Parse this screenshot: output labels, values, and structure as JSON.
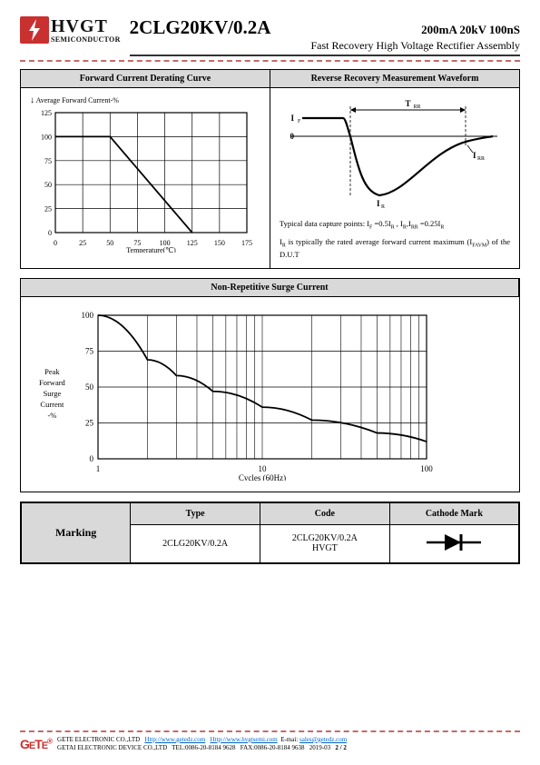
{
  "header": {
    "logo_main": "HVGT",
    "logo_sub": "SEMICONDUCTOR",
    "part_number": "2CLG20KV/0.2A",
    "specs": "200mA 20kV 100nS",
    "subtitle": "Fast Recovery High Voltage Rectifier Assembly"
  },
  "panel1": {
    "left_title": "Forward Current Derating Curve",
    "right_title": "Reverse Recovery Measurement Waveform",
    "derating": {
      "ylabel": "Average Forward Current-%",
      "xlabel": "Temperature(℃)",
      "xticks": [
        0,
        25,
        50,
        75,
        100,
        125,
        150,
        175
      ],
      "yticks": [
        0,
        25,
        50,
        75,
        100,
        125
      ],
      "points": [
        [
          0,
          100
        ],
        [
          50,
          100
        ],
        [
          125,
          0
        ]
      ],
      "line_color": "#000000",
      "grid_color": "#000000",
      "background": "#ffffff"
    },
    "waveform": {
      "labels": {
        "if": "IF",
        "zero": "0",
        "ir": "IR",
        "trr": "TRR",
        "irr": "IRR"
      },
      "curve_color": "#000000",
      "dash_color": "#000000",
      "note1": "Typical data capture points: IF =0.5IR , IR,IRR =0.25IR",
      "note2": "IR is typically the rated average forward current maximum (IFAVM) of the D.U.T"
    }
  },
  "panel2": {
    "title": "Non-Repetitive Surge Current",
    "surge": {
      "ylabel_lines": [
        "Peak",
        "Forward",
        "Surge",
        "Current",
        "-%"
      ],
      "xlabel": "Cycles (60Hz)",
      "yticks": [
        0,
        25,
        50,
        75,
        100
      ],
      "xticks": [
        1,
        10,
        100
      ],
      "points": [
        [
          1,
          100
        ],
        [
          2,
          69
        ],
        [
          3,
          58
        ],
        [
          5,
          47
        ],
        [
          10,
          36
        ],
        [
          20,
          27
        ],
        [
          50,
          18
        ],
        [
          100,
          12
        ]
      ],
      "line_color": "#000000",
      "grid_color": "#000000"
    }
  },
  "marking": {
    "rowhead": "Marking",
    "col_type": "Type",
    "col_code": "Code",
    "col_cathode": "Cathode Mark",
    "type_val": "2CLG20KV/0.2A",
    "code_val1": "2CLG20KV/0.2A",
    "code_val2": "HVGT"
  },
  "footer": {
    "logo": "GETE",
    "line1a": "GETE ELECTRONIC CO.,LTD",
    "link1": "Http://www.getedz.com",
    "link2": "Http://www.hvgtsemi.com",
    "email_label": "E-mai:",
    "email": "sales@getedz.com",
    "line2a": "GETAI ELECTRONIC DEVICE CO.,LTD",
    "tel": "TEL:0086-20-8184 9628",
    "fax": "FAX:0086-20-8184 9638",
    "date": "2019-03",
    "page": "2 / 2"
  }
}
